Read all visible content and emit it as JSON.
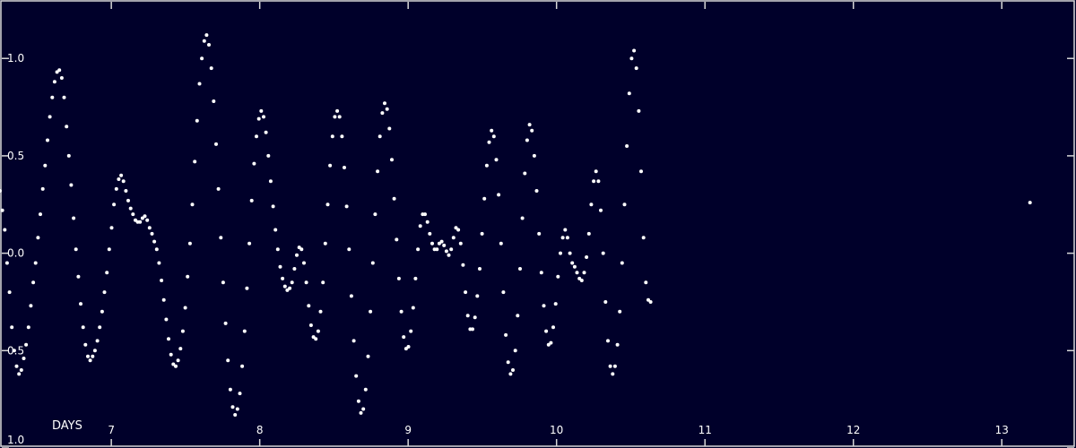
{
  "colors": {
    "background": "#00002a",
    "points": "#ffffff",
    "frame": "#d8d8d8",
    "text": "#ffffff"
  },
  "chart_data": {
    "type": "scatter",
    "xlabel": "DAYS",
    "ylabel": "",
    "title": "",
    "xlim": [
      6.25,
      13.5
    ],
    "ylim": [
      -1.0,
      1.3
    ],
    "x_ticks": [
      7,
      8,
      9,
      10,
      11,
      12,
      13
    ],
    "y_ticks": [
      -1.0,
      -0.5,
      0.0,
      0.5,
      1.0
    ],
    "y_tick_labels": [
      "1.0",
      "0.5",
      "0.0",
      "0.5",
      "1.0"
    ],
    "grid": false,
    "series": [
      {
        "marker": "dot",
        "color": "#ffffff",
        "points": [
          [
            6.25,
            0.32
          ],
          [
            6.266,
            0.22
          ],
          [
            6.282,
            0.12
          ],
          [
            6.298,
            -0.05
          ],
          [
            6.314,
            -0.2
          ],
          [
            6.33,
            -0.38
          ],
          [
            6.346,
            -0.5
          ],
          [
            6.362,
            -0.58
          ],
          [
            6.378,
            -0.62
          ],
          [
            6.394,
            -0.6
          ],
          [
            6.41,
            -0.54
          ],
          [
            6.426,
            -0.47
          ],
          [
            6.442,
            -0.38
          ],
          [
            6.458,
            -0.27
          ],
          [
            6.474,
            -0.15
          ],
          [
            6.49,
            -0.05
          ],
          [
            6.506,
            0.08
          ],
          [
            6.522,
            0.2
          ],
          [
            6.538,
            0.33
          ],
          [
            6.554,
            0.45
          ],
          [
            6.57,
            0.58
          ],
          [
            6.586,
            0.7
          ],
          [
            6.602,
            0.8
          ],
          [
            6.618,
            0.88
          ],
          [
            6.634,
            0.93
          ],
          [
            6.65,
            0.94
          ],
          [
            6.666,
            0.9
          ],
          [
            6.682,
            0.8
          ],
          [
            6.698,
            0.65
          ],
          [
            6.714,
            0.5
          ],
          [
            6.73,
            0.35
          ],
          [
            6.746,
            0.18
          ],
          [
            6.762,
            0.02
          ],
          [
            6.778,
            -0.12
          ],
          [
            6.794,
            -0.26
          ],
          [
            6.81,
            -0.38
          ],
          [
            6.826,
            -0.47
          ],
          [
            6.842,
            -0.53
          ],
          [
            6.858,
            -0.55
          ],
          [
            6.874,
            -0.53
          ],
          [
            6.89,
            -0.5
          ],
          [
            6.906,
            -0.45
          ],
          [
            6.922,
            -0.38
          ],
          [
            6.938,
            -0.3
          ],
          [
            6.954,
            -0.2
          ],
          [
            6.97,
            -0.1
          ],
          [
            6.986,
            0.02
          ],
          [
            7.002,
            0.13
          ],
          [
            7.018,
            0.25
          ],
          [
            7.034,
            0.33
          ],
          [
            7.05,
            0.38
          ],
          [
            7.066,
            0.4
          ],
          [
            7.082,
            0.37
          ],
          [
            7.098,
            0.32
          ],
          [
            7.114,
            0.27
          ],
          [
            7.13,
            0.23
          ],
          [
            7.146,
            0.2
          ],
          [
            7.162,
            0.17
          ],
          [
            7.178,
            0.16
          ],
          [
            7.194,
            0.16
          ],
          [
            7.21,
            0.18
          ],
          [
            7.226,
            0.19
          ],
          [
            7.242,
            0.17
          ],
          [
            7.258,
            0.13
          ],
          [
            7.274,
            0.1
          ],
          [
            7.29,
            0.06
          ],
          [
            7.306,
            0.02
          ],
          [
            7.322,
            -0.05
          ],
          [
            7.338,
            -0.14
          ],
          [
            7.354,
            -0.24
          ],
          [
            7.37,
            -0.34
          ],
          [
            7.386,
            -0.44
          ],
          [
            7.402,
            -0.52
          ],
          [
            7.418,
            -0.57
          ],
          [
            7.434,
            -0.58
          ],
          [
            7.45,
            -0.55
          ],
          [
            7.466,
            -0.49
          ],
          [
            7.482,
            -0.4
          ],
          [
            7.498,
            -0.28
          ],
          [
            7.514,
            -0.12
          ],
          [
            7.53,
            0.05
          ],
          [
            7.546,
            0.25
          ],
          [
            7.562,
            0.47
          ],
          [
            7.578,
            0.68
          ],
          [
            7.594,
            0.87
          ],
          [
            7.61,
            1.0
          ],
          [
            7.626,
            1.09
          ],
          [
            7.642,
            1.12
          ],
          [
            7.658,
            1.07
          ],
          [
            7.674,
            0.95
          ],
          [
            7.69,
            0.78
          ],
          [
            7.706,
            0.56
          ],
          [
            7.722,
            0.33
          ],
          [
            7.738,
            0.08
          ],
          [
            7.754,
            -0.15
          ],
          [
            7.77,
            -0.36
          ],
          [
            7.786,
            -0.55
          ],
          [
            7.802,
            -0.7
          ],
          [
            7.818,
            -0.79
          ],
          [
            7.834,
            -0.83
          ],
          [
            7.85,
            -0.8
          ],
          [
            7.866,
            -0.72
          ],
          [
            7.882,
            -0.58
          ],
          [
            7.898,
            -0.4
          ],
          [
            7.914,
            -0.18
          ],
          [
            7.93,
            0.05
          ],
          [
            7.946,
            0.27
          ],
          [
            7.962,
            0.46
          ],
          [
            7.978,
            0.6
          ],
          [
            7.994,
            0.69
          ],
          [
            8.01,
            0.73
          ],
          [
            8.026,
            0.7
          ],
          [
            8.042,
            0.62
          ],
          [
            8.058,
            0.5
          ],
          [
            8.074,
            0.37
          ],
          [
            8.09,
            0.24
          ],
          [
            8.106,
            0.12
          ],
          [
            8.122,
            0.02
          ],
          [
            8.138,
            -0.07
          ],
          [
            8.154,
            -0.13
          ],
          [
            8.17,
            -0.17
          ],
          [
            8.186,
            -0.19
          ],
          [
            8.202,
            -0.18
          ],
          [
            8.218,
            -0.15
          ],
          [
            8.234,
            -0.08
          ],
          [
            8.25,
            -0.01
          ],
          [
            8.266,
            0.03
          ],
          [
            8.282,
            0.02
          ],
          [
            8.298,
            -0.05
          ],
          [
            8.314,
            -0.15
          ],
          [
            8.33,
            -0.27
          ],
          [
            8.346,
            -0.37
          ],
          [
            8.362,
            -0.43
          ],
          [
            8.378,
            -0.44
          ],
          [
            8.394,
            -0.4
          ],
          [
            8.41,
            -0.3
          ],
          [
            8.426,
            -0.15
          ],
          [
            8.442,
            0.05
          ],
          [
            8.458,
            0.25
          ],
          [
            8.474,
            0.45
          ],
          [
            8.49,
            0.6
          ],
          [
            8.506,
            0.7
          ],
          [
            8.522,
            0.73
          ],
          [
            8.538,
            0.7
          ],
          [
            8.554,
            0.6
          ],
          [
            8.57,
            0.44
          ],
          [
            8.586,
            0.24
          ],
          [
            8.602,
            0.02
          ],
          [
            8.618,
            -0.22
          ],
          [
            8.634,
            -0.45
          ],
          [
            8.65,
            -0.63
          ],
          [
            8.666,
            -0.76
          ],
          [
            8.682,
            -0.82
          ],
          [
            8.698,
            -0.8
          ],
          [
            8.714,
            -0.7
          ],
          [
            8.73,
            -0.53
          ],
          [
            8.746,
            -0.3
          ],
          [
            8.762,
            -0.05
          ],
          [
            8.778,
            0.2
          ],
          [
            8.794,
            0.42
          ],
          [
            8.81,
            0.6
          ],
          [
            8.826,
            0.72
          ],
          [
            8.842,
            0.77
          ],
          [
            8.858,
            0.74
          ],
          [
            8.874,
            0.64
          ],
          [
            8.89,
            0.48
          ],
          [
            8.906,
            0.28
          ],
          [
            8.922,
            0.07
          ],
          [
            8.938,
            -0.13
          ],
          [
            8.954,
            -0.3
          ],
          [
            8.97,
            -0.43
          ],
          [
            8.986,
            -0.49
          ],
          [
            9.002,
            -0.48
          ],
          [
            9.018,
            -0.4
          ],
          [
            9.034,
            -0.28
          ],
          [
            9.05,
            -0.13
          ],
          [
            9.066,
            0.02
          ],
          [
            9.082,
            0.14
          ],
          [
            9.098,
            0.2
          ],
          [
            9.114,
            0.2
          ],
          [
            9.13,
            0.16
          ],
          [
            9.146,
            0.1
          ],
          [
            9.162,
            0.05
          ],
          [
            9.178,
            0.02
          ],
          [
            9.194,
            0.02
          ],
          [
            9.21,
            0.05
          ],
          [
            9.226,
            0.06
          ],
          [
            9.242,
            0.04
          ],
          [
            9.258,
            0.01
          ],
          [
            9.274,
            -0.01
          ],
          [
            9.29,
            0.02
          ],
          [
            9.306,
            0.08
          ],
          [
            9.322,
            0.13
          ],
          [
            9.338,
            0.12
          ],
          [
            9.354,
            0.05
          ],
          [
            9.37,
            -0.06
          ],
          [
            9.386,
            -0.2
          ],
          [
            9.402,
            -0.32
          ],
          [
            9.418,
            -0.39
          ],
          [
            9.434,
            -0.39
          ],
          [
            9.45,
            -0.33
          ],
          [
            9.466,
            -0.22
          ],
          [
            9.482,
            -0.08
          ],
          [
            9.498,
            0.1
          ],
          [
            9.514,
            0.28
          ],
          [
            9.53,
            0.45
          ],
          [
            9.546,
            0.57
          ],
          [
            9.562,
            0.63
          ],
          [
            9.578,
            0.6
          ],
          [
            9.594,
            0.48
          ],
          [
            9.61,
            0.3
          ],
          [
            9.626,
            0.05
          ],
          [
            9.642,
            -0.2
          ],
          [
            9.658,
            -0.42
          ],
          [
            9.674,
            -0.56
          ],
          [
            9.69,
            -0.62
          ],
          [
            9.706,
            -0.6
          ],
          [
            9.722,
            -0.5
          ],
          [
            9.738,
            -0.32
          ],
          [
            9.754,
            -0.08
          ],
          [
            9.77,
            0.18
          ],
          [
            9.786,
            0.41
          ],
          [
            9.802,
            0.58
          ],
          [
            9.818,
            0.66
          ],
          [
            9.834,
            0.63
          ],
          [
            9.85,
            0.5
          ],
          [
            9.866,
            0.32
          ],
          [
            9.882,
            0.1
          ],
          [
            9.898,
            -0.1
          ],
          [
            9.914,
            -0.27
          ],
          [
            9.93,
            -0.4
          ],
          [
            9.946,
            -0.47
          ],
          [
            9.962,
            -0.46
          ],
          [
            9.978,
            -0.38
          ],
          [
            9.994,
            -0.26
          ],
          [
            10.01,
            -0.12
          ],
          [
            10.026,
            0.0
          ],
          [
            10.042,
            0.08
          ],
          [
            10.058,
            0.12
          ],
          [
            10.074,
            0.08
          ],
          [
            10.09,
            0.0
          ],
          [
            10.106,
            -0.05
          ],
          [
            10.122,
            -0.07
          ],
          [
            10.138,
            -0.1
          ],
          [
            10.154,
            -0.13
          ],
          [
            10.17,
            -0.14
          ],
          [
            10.186,
            -0.1
          ],
          [
            10.202,
            -0.02
          ],
          [
            10.218,
            0.1
          ],
          [
            10.234,
            0.25
          ],
          [
            10.25,
            0.37
          ],
          [
            10.266,
            0.42
          ],
          [
            10.282,
            0.37
          ],
          [
            10.298,
            0.22
          ],
          [
            10.314,
            0.0
          ],
          [
            10.33,
            -0.25
          ],
          [
            10.346,
            -0.45
          ],
          [
            10.362,
            -0.58
          ],
          [
            10.378,
            -0.62
          ],
          [
            10.394,
            -0.58
          ],
          [
            10.41,
            -0.47
          ],
          [
            10.426,
            -0.3
          ],
          [
            10.442,
            -0.05
          ],
          [
            10.458,
            0.25
          ],
          [
            10.474,
            0.55
          ],
          [
            10.49,
            0.82
          ],
          [
            10.506,
            1.0
          ],
          [
            10.522,
            1.04
          ],
          [
            10.538,
            0.95
          ],
          [
            10.554,
            0.73
          ],
          [
            10.57,
            0.42
          ],
          [
            10.586,
            0.08
          ],
          [
            10.602,
            -0.15
          ],
          [
            10.618,
            -0.24
          ],
          [
            10.634,
            -0.25
          ],
          [
            13.19,
            0.26
          ]
        ]
      }
    ]
  }
}
